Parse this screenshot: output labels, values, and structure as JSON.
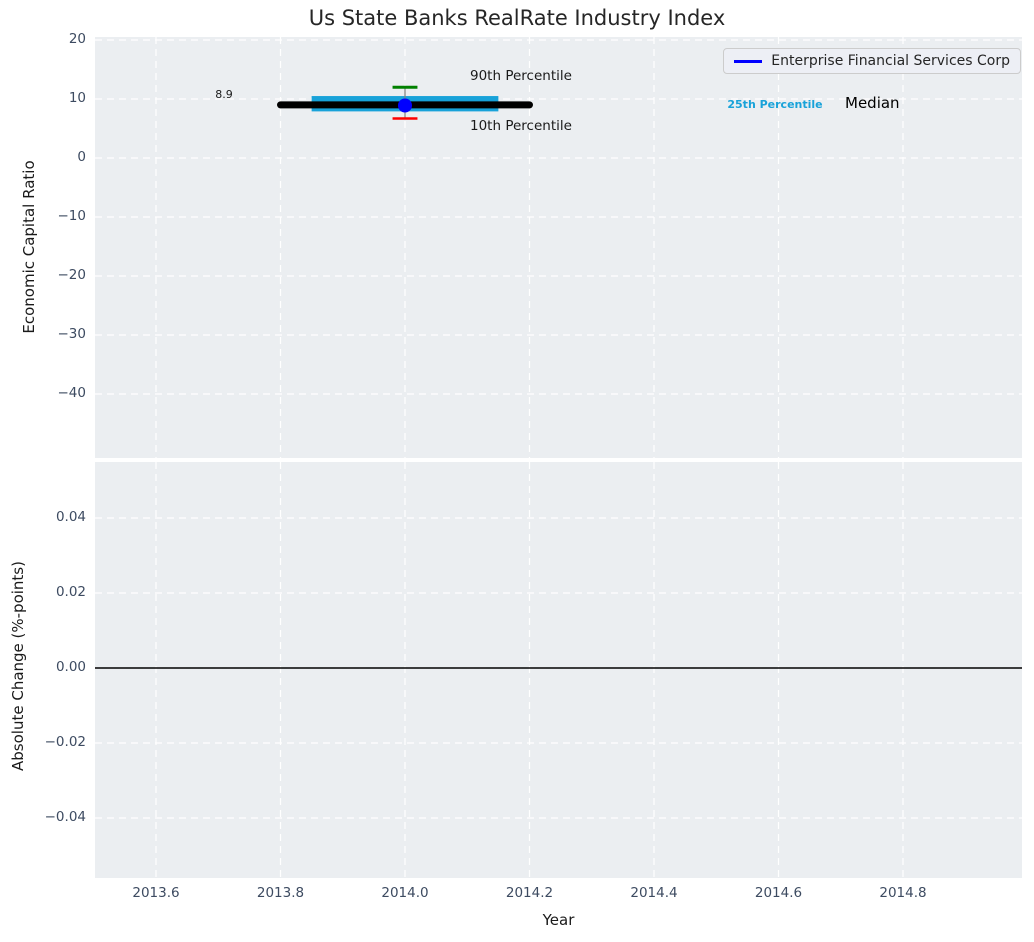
{
  "figure": {
    "title": "Us State Banks RealRate Industry Index",
    "plot_background": "#ebeef1",
    "grid_color": "#ffffff"
  },
  "legend": {
    "label": "Enterprise Financial Services Corp",
    "line_color": "#0000ff",
    "position": "upper right"
  },
  "chart_data": [
    {
      "type": "scatter",
      "panel": "economic-capital-ratio",
      "title": "Us State Banks RealRate Industry Index",
      "ylabel": "Economic Capital Ratio",
      "xlabel": "",
      "xlim": [
        2013.5,
        2015.0
      ],
      "ylim": [
        -50.8,
        20.5
      ],
      "grid": true,
      "xticks": {
        "values": [
          2013.6,
          2013.8,
          2014.0,
          2014.2,
          2014.4,
          2014.6,
          2014.8
        ],
        "labels": [
          "2013.6",
          "2013.8",
          "2014.0",
          "2014.2",
          "2014.4",
          "2014.6",
          "2014.8"
        ]
      },
      "yticks": {
        "values": [
          20,
          10,
          0,
          -10,
          -20,
          -30,
          -40
        ],
        "labels": [
          "20",
          "10",
          "0",
          "−10",
          "−20",
          "−30",
          "−40"
        ]
      },
      "series": [
        {
          "name": "Enterprise Financial Services Corp",
          "marker": "point",
          "x": 2014.0,
          "y": 8.9,
          "color": "#0000ff",
          "annotation": "8.9"
        }
      ],
      "industry_distribution": {
        "x_center": 2014.0,
        "median": {
          "value": 9.0,
          "x_span": [
            2013.8,
            2014.2
          ],
          "color": "#000000",
          "label": "Median"
        },
        "p25_p75_band": {
          "p25": 7.9,
          "p75": 10.5,
          "x_span": [
            2013.85,
            2014.15
          ],
          "color": "#18a2d9",
          "label": "25th Percentile"
        },
        "p90": {
          "value": 12.0,
          "x_span": [
            2013.98,
            2014.02
          ],
          "color": "#008000",
          "label": "90th Percentile"
        },
        "p10": {
          "value": 6.7,
          "x_span": [
            2013.98,
            2014.02
          ],
          "color": "#ff0000",
          "label": "10th Percentile"
        },
        "whisker_color": "#808080"
      },
      "annotations": {
        "value_label": "8.9",
        "p90_label": "90th Percentile",
        "p10_label": "10th Percentile",
        "p25_label": "25th Percentile",
        "median_label": "Median"
      }
    },
    {
      "type": "line",
      "panel": "absolute-change",
      "ylabel": "Absolute Change (%-points)",
      "xlabel": "Year",
      "xlim": [
        2013.5,
        2015.0
      ],
      "ylim": [
        -0.056,
        0.055
      ],
      "grid": true,
      "xticks": {
        "values": [
          2013.6,
          2013.8,
          2014.0,
          2014.2,
          2014.4,
          2014.6,
          2014.8
        ],
        "labels": [
          "2013.6",
          "2013.8",
          "2014.0",
          "2014.2",
          "2014.4",
          "2014.6",
          "2014.8"
        ]
      },
      "yticks": {
        "values": [
          0.04,
          0.02,
          0.0,
          -0.02,
          -0.04
        ],
        "labels": [
          "0.04",
          "0.02",
          "0.00",
          "−0.02",
          "−0.04"
        ]
      },
      "series": [
        {
          "name": "zero-line",
          "marker": "hline",
          "y": 0.0,
          "color": "#000000"
        }
      ]
    }
  ]
}
